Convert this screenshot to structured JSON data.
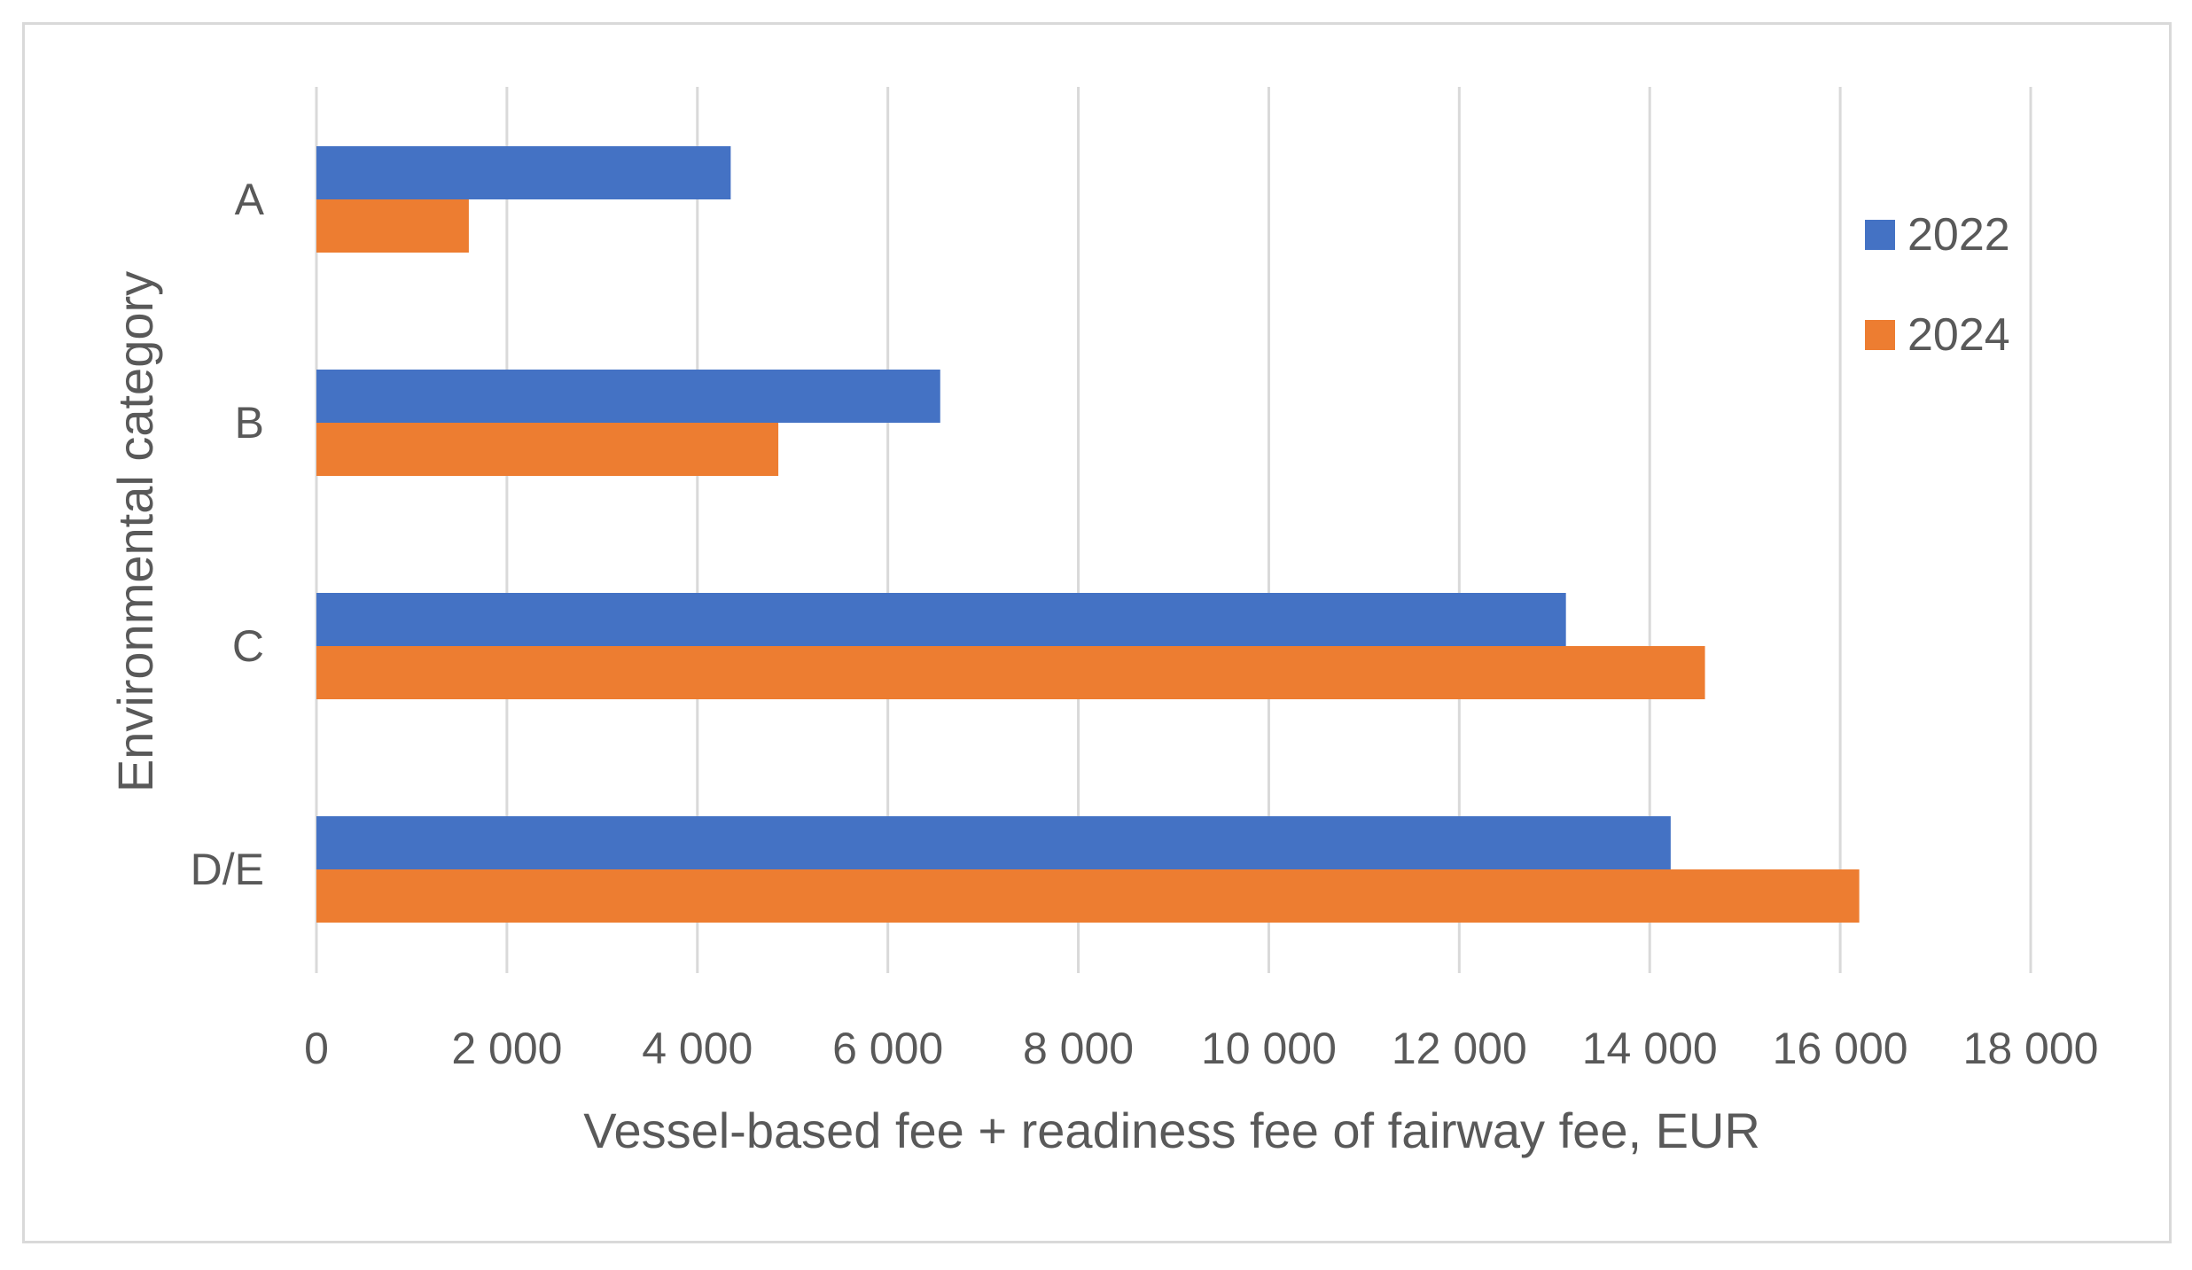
{
  "chart_data": {
    "type": "bar",
    "orientation": "horizontal",
    "categories": [
      "A",
      "B",
      "C",
      "D/E"
    ],
    "series": [
      {
        "name": "2022",
        "color": "#4472C4",
        "values": [
          4350,
          6550,
          13120,
          14220
        ]
      },
      {
        "name": "2024",
        "color": "#ED7D31",
        "values": [
          1600,
          4850,
          14580,
          16200
        ]
      }
    ],
    "xlabel": "Vessel-based fee + readiness fee of fairway fee, EUR",
    "ylabel": "Environmental category",
    "xlim": [
      0,
      18000
    ],
    "xticks": [
      0,
      2000,
      4000,
      6000,
      8000,
      10000,
      12000,
      14000,
      16000,
      18000
    ],
    "xtick_labels": [
      "0",
      "2 000",
      "4 000",
      "6 000",
      "8 000",
      "10 000",
      "12 000",
      "14 000",
      "16 000",
      "18 000"
    ],
    "grid": "vertical",
    "legend_position": "right",
    "gridline_color": "#d9d9d9",
    "text_color": "#595959"
  }
}
